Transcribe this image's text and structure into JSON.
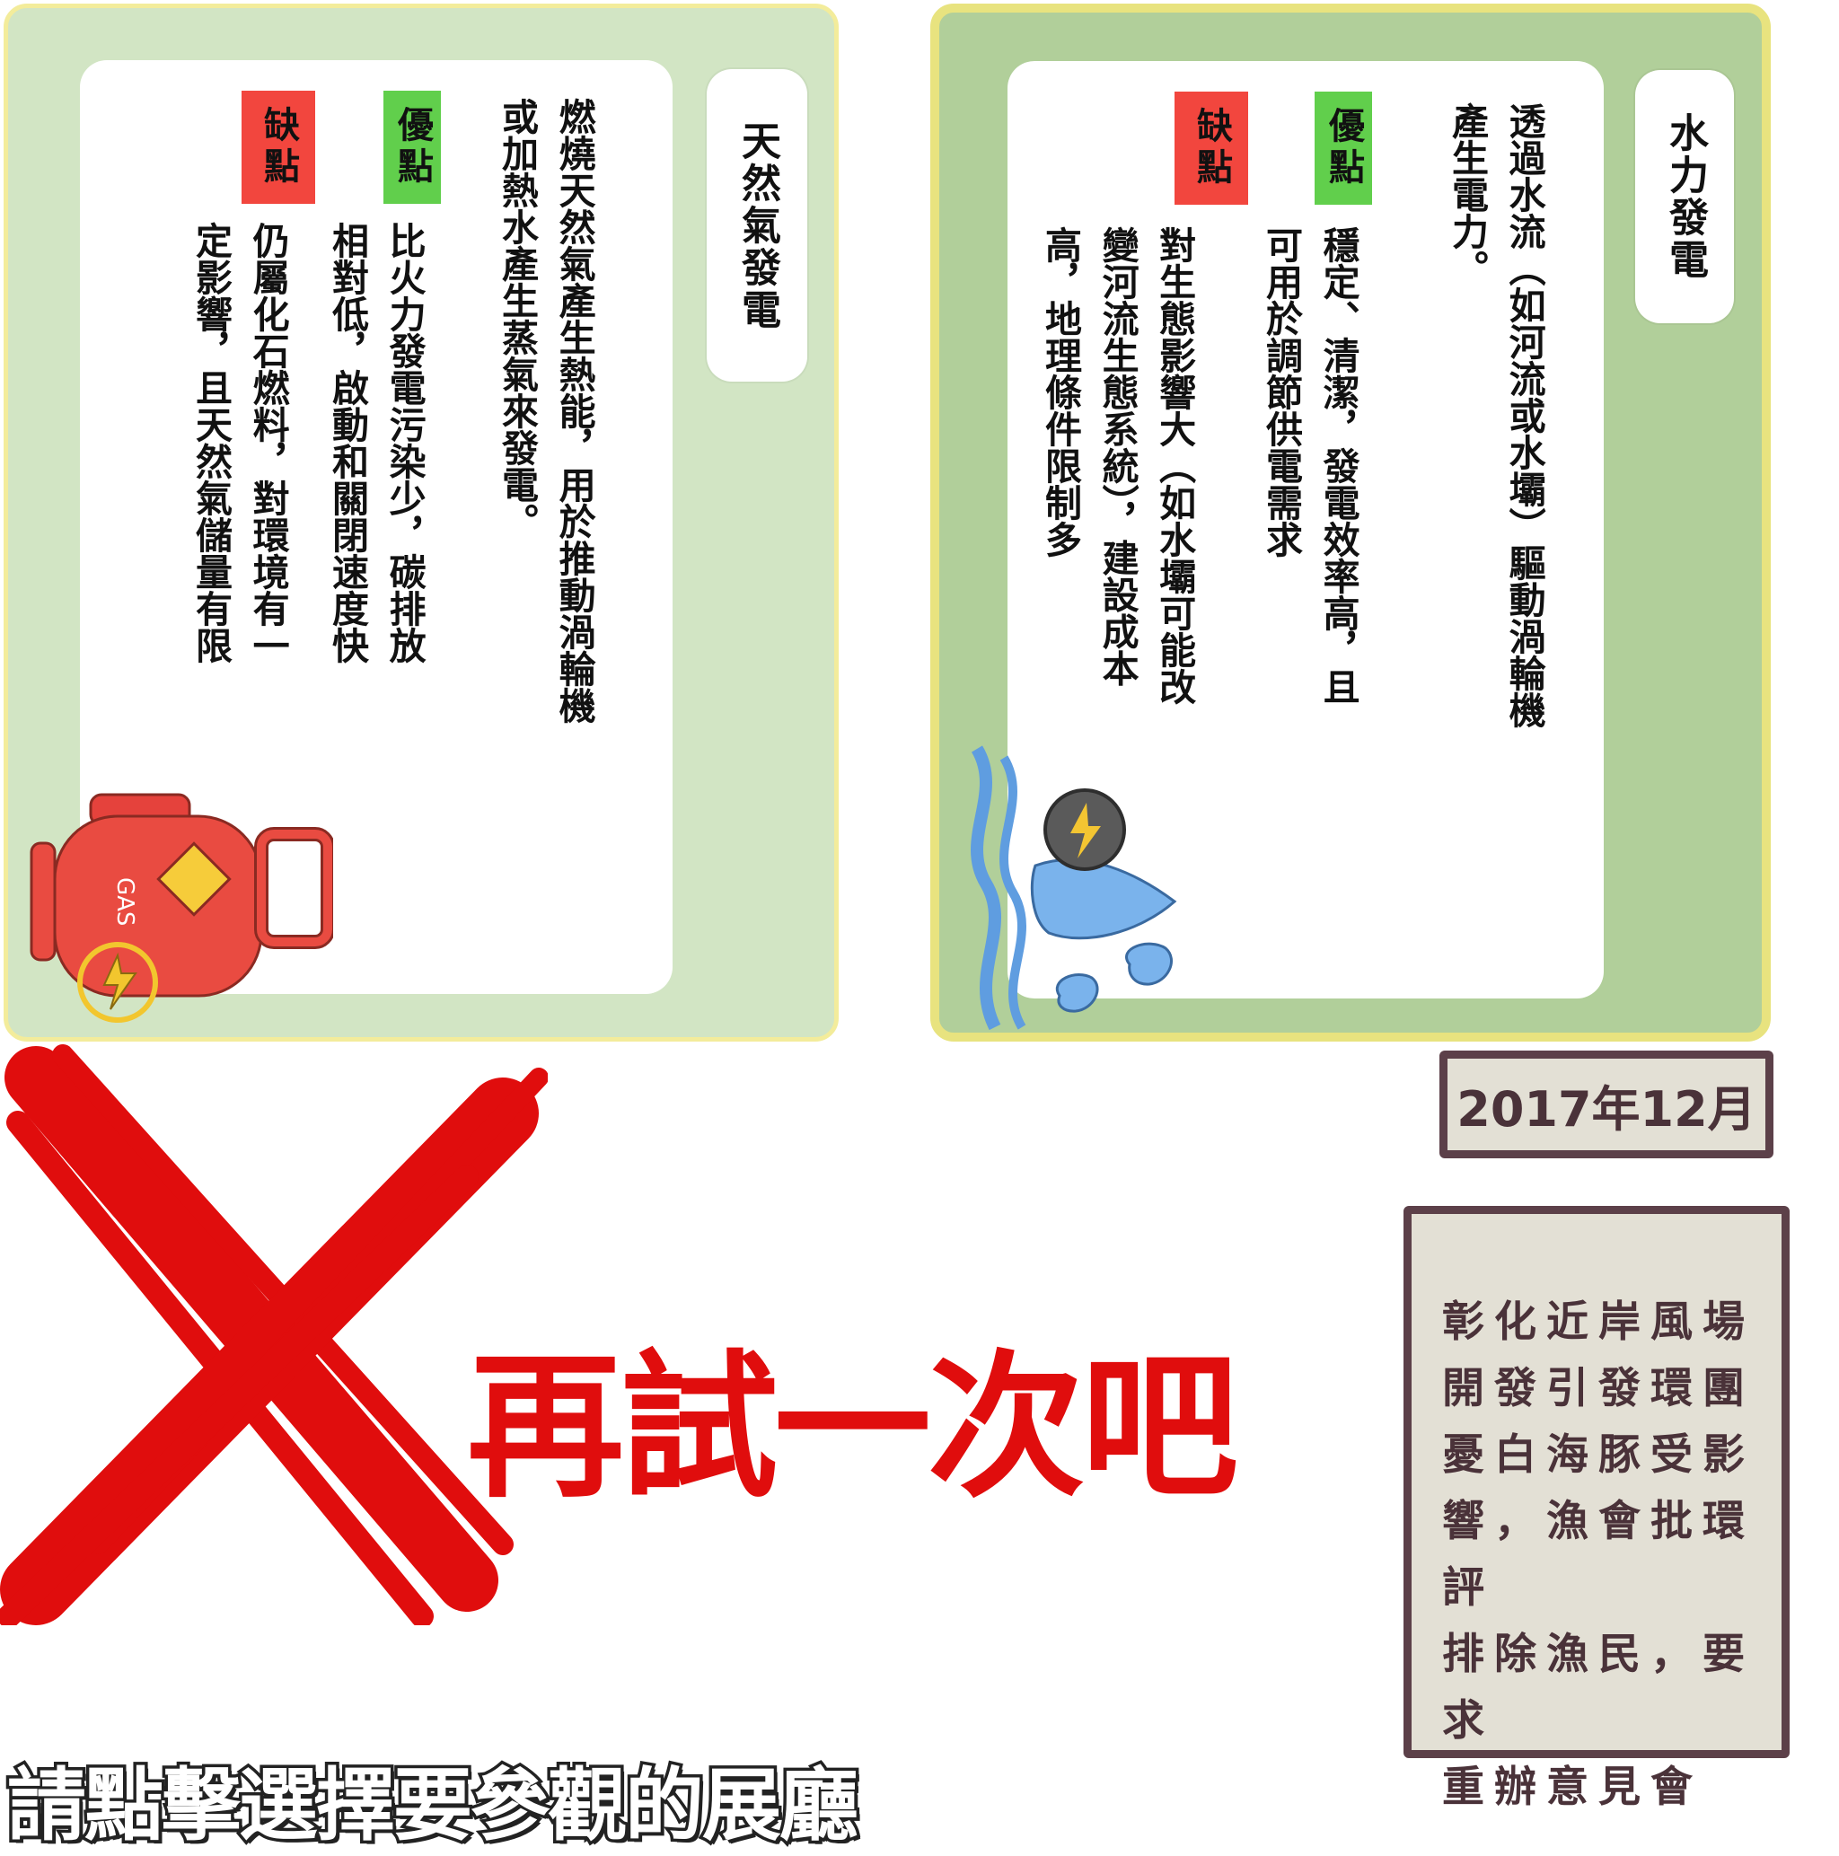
{
  "gas_card": {
    "title": "天然氣發電",
    "description": "燃燒天然氣產生熱能，用於推動渦輪機\n或加熱水產生蒸氣來發電。",
    "pros_label": "優點",
    "pros": "比火力發電污染少，碳排放\n相對低，啟動和關閉速度快",
    "cons_label": "缺點",
    "cons": "仍屬化石燃料，對環境有一\n定影響，且天然氣儲量有限",
    "icon_text": "GAS"
  },
  "hydro_card": {
    "title": "水力發電",
    "description": "透過水流（如河流或水壩）驅動渦輪機\n產生電力。",
    "pros_label": "優點",
    "pros": "穩定、清潔，發電效率高，且\n可用於調節供電需求",
    "cons_label": "缺點",
    "cons": "對生態影響大（如水壩可能改\n變河流生態系統），建設成本\n高，地理條件限制多"
  },
  "result": {
    "message": "再試一次吧"
  },
  "news": {
    "date": "2017年12月",
    "lines": [
      "彰化近岸風場",
      "開發引發環團",
      "憂白海豚受影",
      "響，漁會批環評",
      "排除漁民，要求",
      "重辦意見會"
    ]
  },
  "footer": {
    "prompt": "請點擊選擇要參觀的展廳"
  },
  "colors": {
    "pros_tag": "#61cf4c",
    "cons_tag": "#f2463e",
    "retry_red": "#e00d0d",
    "news_border": "#5c4049"
  }
}
